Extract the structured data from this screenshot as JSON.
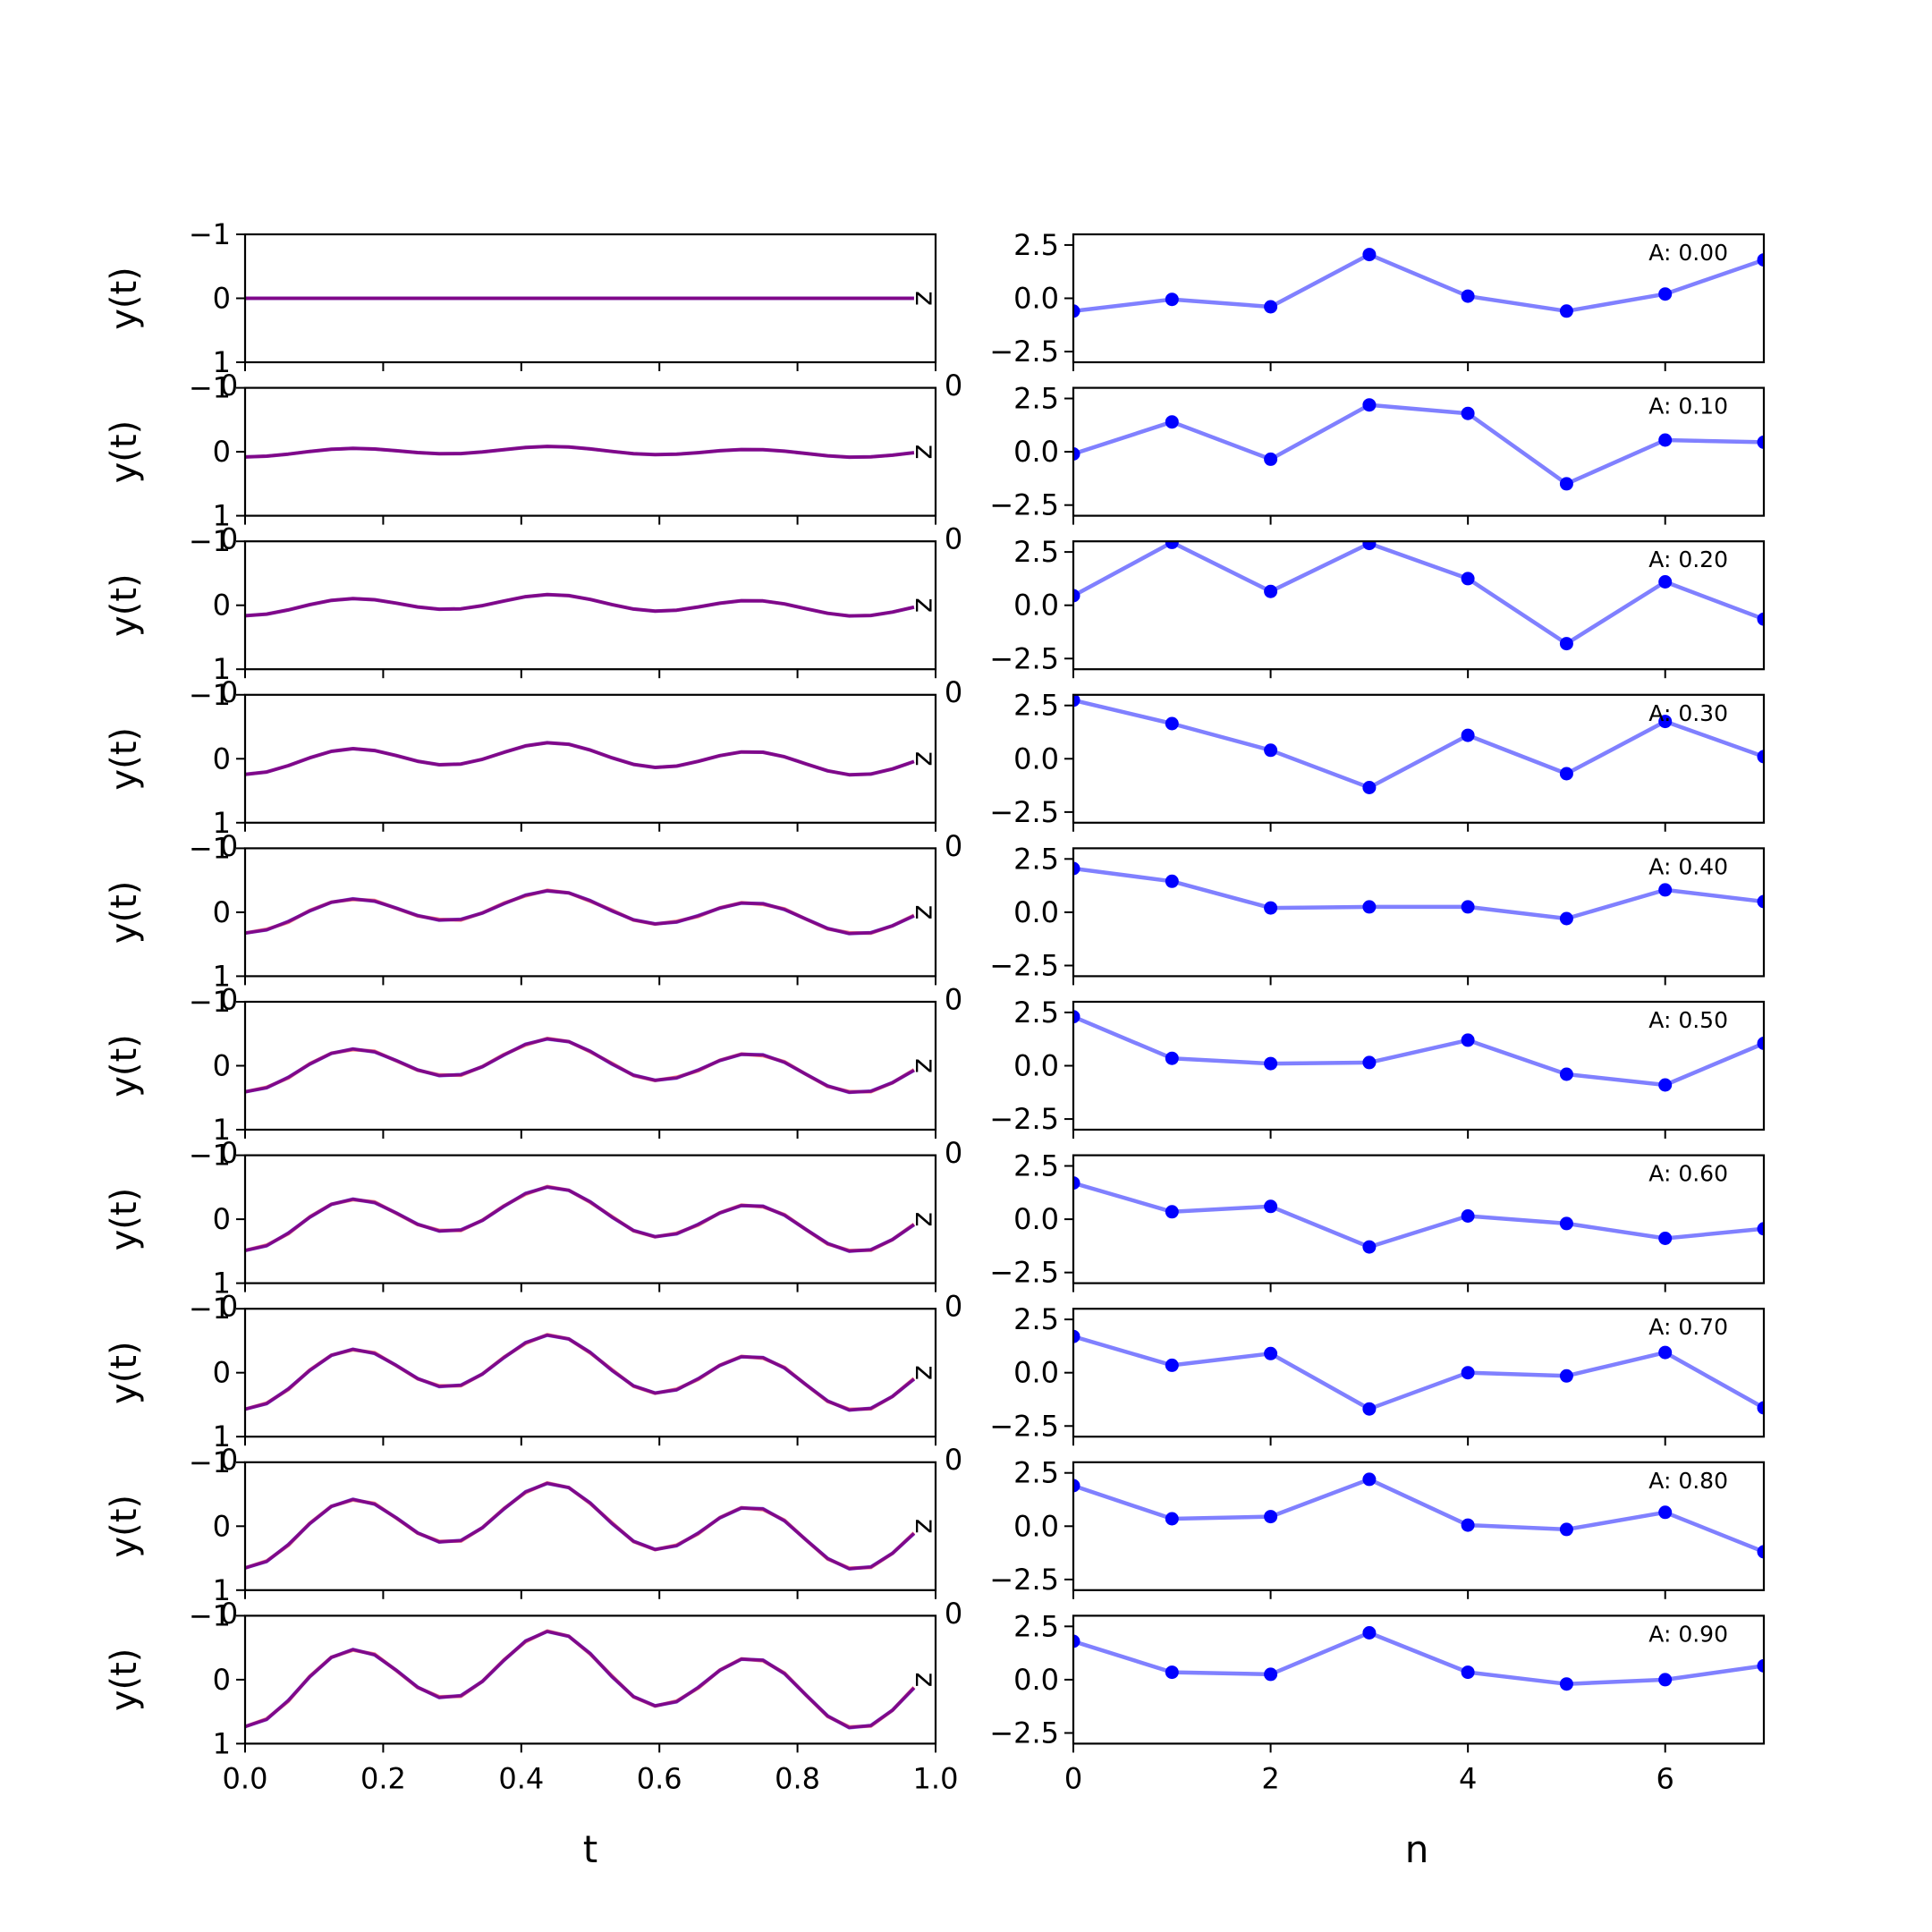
{
  "chart_data": [
    {
      "type": "line",
      "panel": "time-domain",
      "xlabel": "t",
      "ylabel": "y(t)",
      "xlim": [
        0.0,
        1.0
      ],
      "ylim": [
        -1,
        1
      ],
      "xticks": [
        "0.0",
        "0.2",
        "0.4",
        "0.6",
        "0.8",
        "1.0"
      ],
      "yticks": [
        "−1",
        "0",
        "1"
      ],
      "colors": {
        "signal": "#0000ff",
        "overlay": "#ff0000",
        "blend": "#800080"
      },
      "rows": [
        {
          "amplitude": 0.0
        },
        {
          "amplitude": 0.1
        },
        {
          "amplitude": 0.2
        },
        {
          "amplitude": 0.3
        },
        {
          "amplitude": 0.4
        },
        {
          "amplitude": 0.5
        },
        {
          "amplitude": 0.6
        },
        {
          "amplitude": 0.7
        },
        {
          "amplitude": 0.8
        },
        {
          "amplitude": 0.9
        }
      ],
      "row_marker": "z",
      "stray_tick_label": "0"
    },
    {
      "type": "line",
      "panel": "discrete",
      "xlabel": "n",
      "xlim": [
        0,
        7
      ],
      "ylim": [
        -3,
        3
      ],
      "xticks": [
        "0",
        "2",
        "4",
        "6"
      ],
      "yticks": [
        "2.5",
        "0.0",
        "−2.5"
      ],
      "colors": {
        "line": "#8080ff",
        "marker": "#0000ff"
      },
      "rows": [
        {
          "label": "A: 0.00",
          "values": [
            -0.6,
            -0.05,
            -0.4,
            2.05,
            0.1,
            -0.6,
            0.2,
            1.8
          ]
        },
        {
          "label": "A: 0.10",
          "values": [
            -0.1,
            1.4,
            -0.35,
            2.2,
            1.8,
            -1.5,
            0.55,
            0.45
          ]
        },
        {
          "label": "A: 0.20",
          "values": [
            0.45,
            2.95,
            0.65,
            2.9,
            1.25,
            -1.8,
            1.1,
            -0.65
          ]
        },
        {
          "label": "A: 0.30",
          "values": [
            2.75,
            1.65,
            0.4,
            -1.35,
            1.1,
            -0.7,
            1.75,
            0.1
          ]
        },
        {
          "label": "A: 0.40",
          "values": [
            2.05,
            1.45,
            0.2,
            0.25,
            0.25,
            -0.3,
            1.05,
            0.5
          ]
        },
        {
          "label": "A: 0.50",
          "values": [
            2.3,
            0.35,
            0.1,
            0.15,
            1.2,
            -0.4,
            -0.9,
            1.05
          ]
        },
        {
          "label": "A: 0.60",
          "values": [
            1.7,
            0.35,
            0.6,
            -1.3,
            0.15,
            -0.2,
            -0.9,
            -0.45
          ]
        },
        {
          "label": "A: 0.70",
          "values": [
            1.7,
            0.35,
            0.9,
            -1.7,
            0.0,
            -0.15,
            0.95,
            -1.65
          ]
        },
        {
          "label": "A: 0.80",
          "values": [
            1.9,
            0.35,
            0.45,
            2.2,
            0.05,
            -0.15,
            0.65,
            -1.2
          ]
        },
        {
          "label": "A: 0.90",
          "values": [
            1.8,
            0.35,
            0.25,
            2.2,
            0.35,
            -0.2,
            0.0,
            0.65
          ]
        }
      ]
    }
  ]
}
